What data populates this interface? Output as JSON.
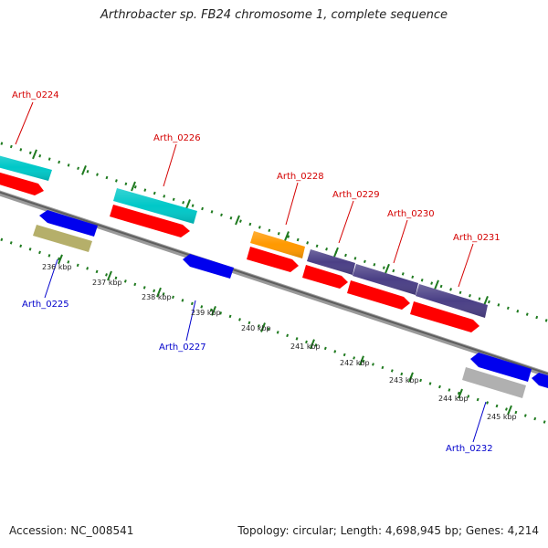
{
  "title": "Arthrobacter sp. FB24 chromosome 1, complete sequence",
  "accession": "Accession: NC_008541",
  "summary": "Topology: circular; Length: 4,698,945 bp; Genes: 4,214",
  "colors": {
    "backbone": "#7a7a7a",
    "tick": "#1f7a1f",
    "label_top": "#d40000",
    "label_bottom": "#0000cc",
    "cds": "#ff0000",
    "fwd_cyan": "#00c8c8",
    "fwd_orange": "#ff9900",
    "fwd_purple": "#4b4086",
    "rev_blue": "#0000ee",
    "rev_khaki": "#b5af6a",
    "rev_gray": "#b0b0b0"
  },
  "scale_labels": [
    "236 kbp",
    "237 kbp",
    "238 kbp",
    "239 kbp",
    "240 kbp",
    "241 kbp",
    "242 kbp",
    "243 kbp",
    "244 kbp",
    "245 kbp"
  ],
  "genes_top": [
    {
      "name": "Arth_0224"
    },
    {
      "name": "Arth_0226"
    },
    {
      "name": "Arth_0228"
    },
    {
      "name": "Arth_0229"
    },
    {
      "name": "Arth_0230"
    },
    {
      "name": "Arth_0231"
    }
  ],
  "genes_bottom": [
    {
      "name": "Arth_0225"
    },
    {
      "name": "Arth_0227"
    },
    {
      "name": "Arth_0232"
    }
  ]
}
